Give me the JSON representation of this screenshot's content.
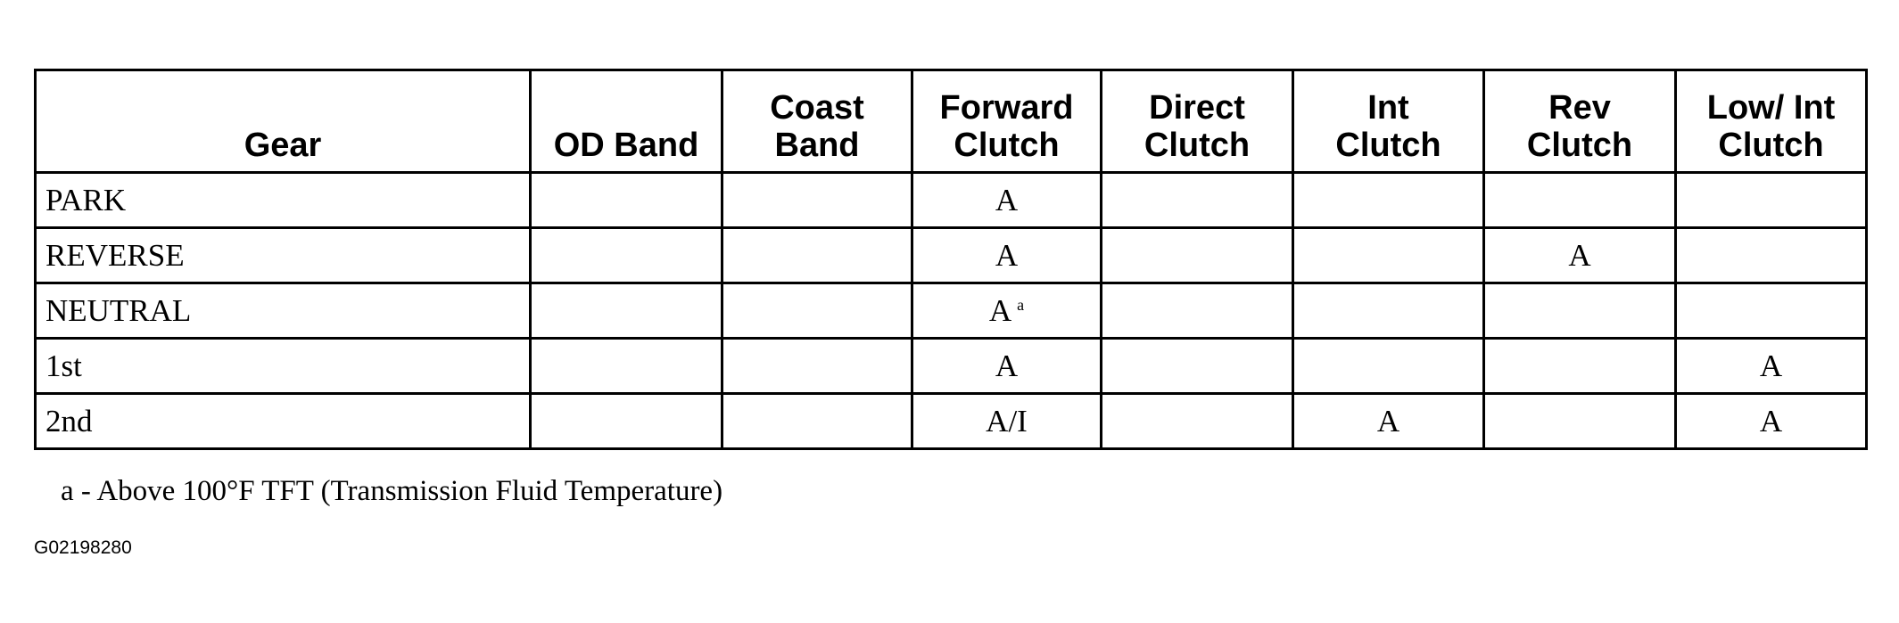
{
  "table": {
    "header": [
      [
        "Gear"
      ],
      [
        "OD Band"
      ],
      [
        "Coast",
        "Band"
      ],
      [
        "Forward",
        "Clutch"
      ],
      [
        "Direct",
        "Clutch"
      ],
      [
        "Int",
        "Clutch"
      ],
      [
        "Rev",
        "Clutch"
      ],
      [
        "Low/ Int",
        "Clutch"
      ]
    ],
    "rows": [
      [
        "PARK",
        null,
        null,
        "A",
        null,
        null,
        null,
        null
      ],
      [
        "REVERSE",
        null,
        null,
        "A",
        null,
        null,
        "A",
        null
      ],
      [
        "NEUTRAL",
        null,
        null,
        {
          "text": "A",
          "sup": "a"
        },
        null,
        null,
        null,
        null
      ],
      [
        "1st",
        null,
        null,
        "A",
        null,
        null,
        null,
        "A"
      ],
      [
        "2nd",
        null,
        null,
        "A/I",
        null,
        "A",
        null,
        "A"
      ]
    ]
  },
  "footnote": "a - Above 100°F TFT (Transmission Fluid Temperature)",
  "figure_id": "G02198280"
}
